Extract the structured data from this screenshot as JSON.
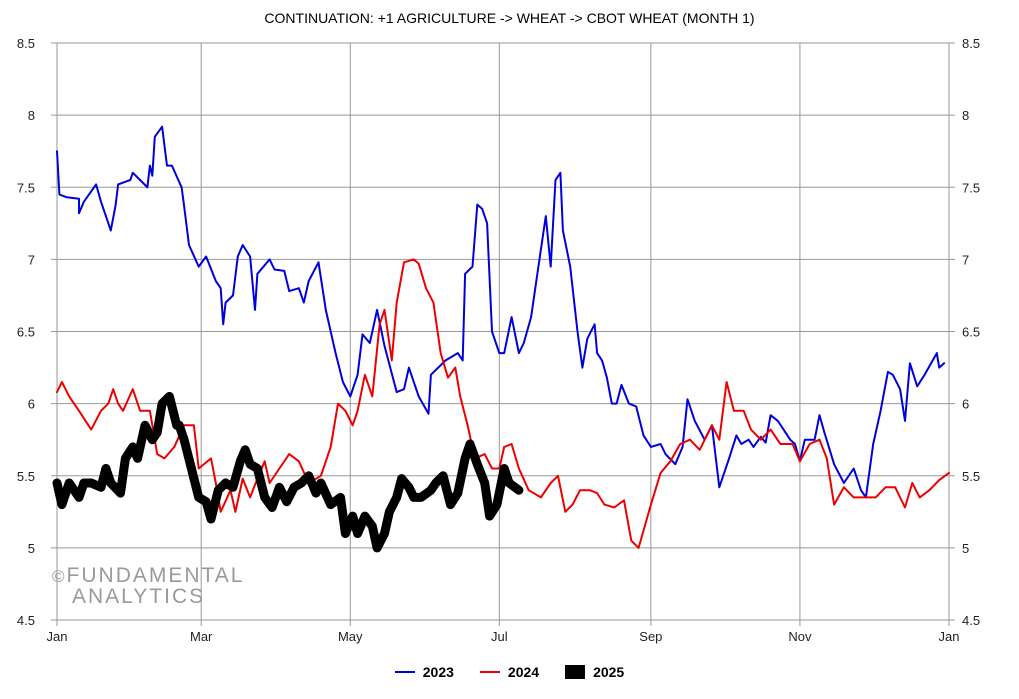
{
  "chart_data": {
    "type": "line",
    "title": "CONTINUATION: +1 AGRICULTURE -> WHEAT -> CBOT WHEAT (MONTH 1)",
    "xlabel": "",
    "ylabel": "",
    "x_unit": "day of year",
    "xlim": [
      0,
      365
    ],
    "ylim": [
      4.5,
      8.5
    ],
    "yticks": [
      "4.5",
      "5",
      "5.5",
      "6",
      "6.5",
      "7",
      "7.5",
      "8",
      "8.5"
    ],
    "xticks": [
      {
        "label": "Jan",
        "day": 0
      },
      {
        "label": "Mar",
        "day": 59
      },
      {
        "label": "May",
        "day": 120
      },
      {
        "label": "Jul",
        "day": 181
      },
      {
        "label": "Sep",
        "day": 243
      },
      {
        "label": "Nov",
        "day": 304
      },
      {
        "label": "Jan",
        "day": 365
      }
    ],
    "grid": true,
    "legend_position": "bottom",
    "watermark": [
      "©",
      "FUNDAMENTAL",
      "ANALYTICS"
    ],
    "series": [
      {
        "name": "2023",
        "color": "#0000dd",
        "width": 2,
        "x": [
          0,
          1,
          4,
          9,
          9,
          11,
          16,
          18,
          20,
          22,
          24,
          25,
          30,
          31,
          34,
          37,
          38,
          39,
          40,
          43,
          45,
          47,
          51,
          52,
          54,
          58,
          61,
          65,
          67,
          68,
          69,
          72,
          74,
          76,
          79,
          81,
          82,
          87,
          89,
          93,
          95,
          99,
          101,
          103,
          107,
          110,
          114,
          117,
          120,
          123,
          125,
          128,
          131,
          134,
          139,
          142,
          144,
          148,
          152,
          153,
          159,
          164,
          166,
          167,
          170,
          172,
          174,
          176,
          178,
          181,
          183,
          186,
          189,
          191,
          194,
          197,
          200,
          202,
          204,
          206,
          207,
          210,
          213,
          215,
          217,
          220,
          221,
          223,
          225,
          227,
          229,
          231,
          234,
          237,
          240,
          243,
          247,
          249,
          253,
          256,
          258,
          261,
          265,
          268,
          271,
          275,
          278,
          280,
          283,
          285,
          288,
          290,
          292,
          295,
          300,
          302,
          304,
          306,
          310,
          312,
          314,
          318,
          322,
          326,
          329,
          331,
          334,
          337,
          340,
          342,
          345,
          347,
          349,
          352,
          355,
          360,
          361,
          363
        ],
        "y": [
          7.75,
          7.45,
          7.43,
          7.42,
          7.32,
          7.4,
          7.52,
          7.4,
          7.3,
          7.2,
          7.38,
          7.52,
          7.55,
          7.6,
          7.55,
          7.5,
          7.65,
          7.58,
          7.85,
          7.92,
          7.65,
          7.65,
          7.5,
          7.37,
          7.1,
          6.95,
          7.02,
          6.85,
          6.8,
          6.55,
          6.7,
          6.75,
          7.02,
          7.1,
          7.02,
          6.65,
          6.9,
          7.0,
          6.93,
          6.92,
          6.78,
          6.8,
          6.7,
          6.85,
          6.98,
          6.65,
          6.35,
          6.15,
          6.05,
          6.2,
          6.48,
          6.42,
          6.65,
          6.4,
          6.08,
          6.1,
          6.25,
          6.05,
          5.93,
          6.2,
          6.3,
          6.35,
          6.3,
          6.9,
          6.95,
          7.38,
          7.35,
          7.25,
          6.5,
          6.35,
          6.35,
          6.6,
          6.35,
          6.42,
          6.6,
          6.95,
          7.3,
          6.95,
          7.55,
          7.6,
          7.2,
          6.95,
          6.5,
          6.25,
          6.45,
          6.55,
          6.35,
          6.3,
          6.18,
          6.0,
          6.0,
          6.13,
          6.0,
          5.98,
          5.78,
          5.7,
          5.72,
          5.65,
          5.58,
          5.7,
          6.03,
          5.88,
          5.75,
          5.85,
          5.42,
          5.62,
          5.78,
          5.72,
          5.75,
          5.7,
          5.77,
          5.73,
          5.92,
          5.88,
          5.75,
          5.72,
          5.6,
          5.75,
          5.75,
          5.92,
          5.8,
          5.58,
          5.45,
          5.55,
          5.4,
          5.35,
          5.72,
          5.95,
          6.22,
          6.2,
          6.1,
          5.88,
          6.28,
          6.12,
          6.2,
          6.35,
          6.25,
          6.28
        ]
      },
      {
        "name": "2024",
        "color": "#ee0000",
        "width": 2,
        "x": [
          0,
          2,
          5,
          9,
          14,
          18,
          21,
          23,
          25,
          27,
          31,
          34,
          38,
          41,
          44,
          48,
          52,
          56,
          58,
          63,
          65,
          67,
          71,
          73,
          76,
          79,
          82,
          85,
          87,
          91,
          95,
          99,
          103,
          108,
          112,
          115,
          118,
          121,
          123,
          126,
          129,
          132,
          134,
          137,
          139,
          142,
          146,
          148,
          151,
          154,
          157,
          160,
          163,
          165,
          168,
          171,
          175,
          178,
          181,
          183,
          186,
          189,
          193,
          198,
          202,
          205,
          208,
          211,
          214,
          218,
          221,
          224,
          228,
          232,
          235,
          238,
          243,
          247,
          251,
          255,
          259,
          263,
          268,
          271,
          274,
          277,
          281,
          284,
          288,
          292,
          296,
          301,
          304,
          308,
          312,
          315,
          318,
          322,
          326,
          330,
          335,
          339,
          343,
          347,
          350,
          353,
          357,
          361,
          365
        ],
        "y": [
          6.08,
          6.15,
          6.05,
          5.95,
          5.82,
          5.95,
          6.0,
          6.1,
          6.0,
          5.95,
          6.1,
          5.95,
          5.95,
          5.65,
          5.62,
          5.7,
          5.85,
          5.85,
          5.55,
          5.62,
          5.45,
          5.25,
          5.4,
          5.25,
          5.48,
          5.35,
          5.48,
          5.6,
          5.45,
          5.55,
          5.65,
          5.6,
          5.45,
          5.5,
          5.7,
          6.0,
          5.95,
          5.85,
          5.95,
          6.2,
          6.05,
          6.55,
          6.65,
          6.3,
          6.7,
          6.98,
          7.0,
          6.97,
          6.8,
          6.7,
          6.35,
          6.18,
          6.25,
          6.05,
          5.85,
          5.62,
          5.65,
          5.55,
          5.55,
          5.7,
          5.72,
          5.55,
          5.4,
          5.35,
          5.45,
          5.5,
          5.25,
          5.3,
          5.4,
          5.4,
          5.38,
          5.3,
          5.28,
          5.33,
          5.05,
          5.0,
          5.3,
          5.52,
          5.6,
          5.72,
          5.75,
          5.68,
          5.85,
          5.75,
          6.15,
          5.95,
          5.95,
          5.82,
          5.75,
          5.82,
          5.72,
          5.72,
          5.6,
          5.72,
          5.75,
          5.62,
          5.3,
          5.42,
          5.35,
          5.35,
          5.35,
          5.42,
          5.42,
          5.28,
          5.45,
          5.35,
          5.4,
          5.47,
          5.52
        ]
      },
      {
        "name": "2025",
        "color": "#000000",
        "width": 9,
        "x": [
          0,
          2,
          5,
          9,
          11,
          14,
          18,
          20,
          22,
          26,
          28,
          31,
          33,
          36,
          39,
          41,
          43,
          46,
          49,
          50,
          52,
          55,
          58,
          61,
          63,
          66,
          69,
          72,
          75,
          77,
          79,
          82,
          85,
          88,
          91,
          94,
          97,
          100,
          103,
          106,
          108,
          112,
          116,
          118,
          121,
          123,
          126,
          129,
          131,
          134,
          136,
          139,
          141,
          144,
          146,
          149,
          153,
          155,
          158,
          161,
          164,
          167,
          169,
          172,
          175,
          177,
          180,
          183,
          185,
          189
        ],
        "y": [
          5.45,
          5.3,
          5.45,
          5.35,
          5.45,
          5.45,
          5.42,
          5.55,
          5.45,
          5.38,
          5.62,
          5.7,
          5.62,
          5.85,
          5.75,
          5.8,
          6.0,
          6.05,
          5.85,
          5.85,
          5.75,
          5.55,
          5.35,
          5.32,
          5.2,
          5.4,
          5.45,
          5.42,
          5.6,
          5.68,
          5.58,
          5.55,
          5.35,
          5.28,
          5.42,
          5.32,
          5.42,
          5.45,
          5.5,
          5.38,
          5.45,
          5.3,
          5.35,
          5.1,
          5.22,
          5.1,
          5.22,
          5.15,
          5.0,
          5.1,
          5.25,
          5.35,
          5.48,
          5.42,
          5.35,
          5.35,
          5.4,
          5.45,
          5.5,
          5.3,
          5.38,
          5.62,
          5.72,
          5.58,
          5.45,
          5.22,
          5.3,
          5.55,
          5.45,
          5.4
        ]
      }
    ]
  }
}
